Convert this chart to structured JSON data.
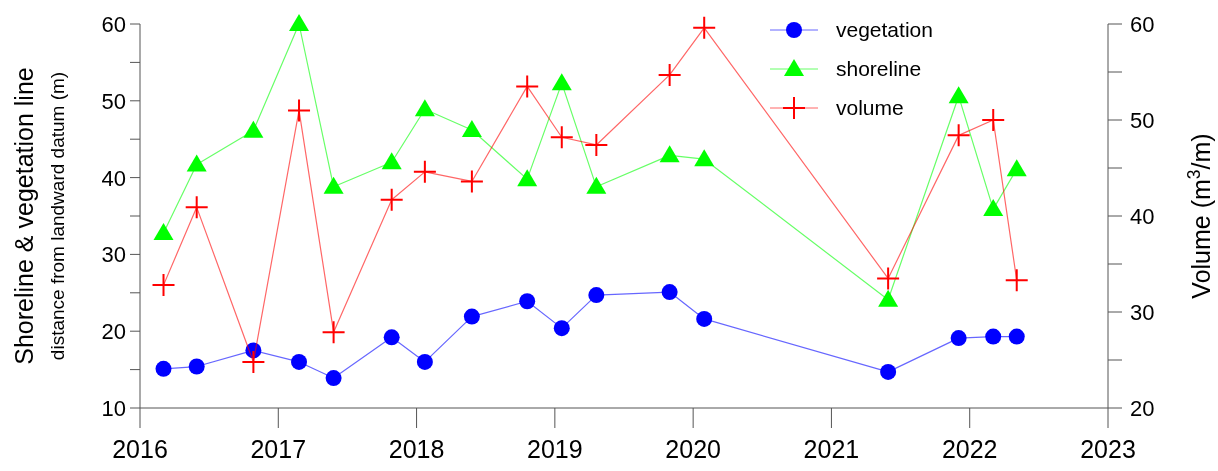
{
  "chart_data": {
    "type": "line",
    "ylabel": "Shoreline & vegetation line\ndistance from landward datum (m)",
    "y2label": "Volume (m$^{3}$/m)",
    "xlim": [
      2016,
      2023
    ],
    "xticks": [
      2016,
      2017,
      2018,
      2019,
      2020,
      2021,
      2022,
      2023
    ],
    "ylim": [
      10,
      60
    ],
    "yticks": [
      10,
      {
        "value": 15,
        "label": null
      },
      20,
      {
        "value": 25,
        "label": null
      },
      30,
      {
        "value": 35,
        "label": null
      },
      40,
      {
        "value": 45,
        "label": null
      },
      50,
      {
        "value": 55,
        "label": null
      },
      60
    ],
    "y2lim": [
      20,
      60
    ],
    "y2ticks": [
      20,
      {
        "value": 25,
        "label": null
      },
      30,
      {
        "value": 35,
        "label": null
      },
      40,
      {
        "value": 45,
        "label": null
      },
      50,
      {
        "value": 55,
        "label": null
      },
      60
    ],
    "x": [
      2016.17,
      2016.41,
      2016.82,
      2017.15,
      2017.4,
      2017.82,
      2018.06,
      2018.4,
      2018.8,
      2019.05,
      2019.3,
      2019.83,
      2020.08,
      2021.41,
      2021.92,
      2022.17,
      2022.34
    ],
    "legend": "top right",
    "grid": false,
    "line_style": "solid",
    "series": [
      {
        "name": "vegetation",
        "color": "#0000ff",
        "marker": "circle",
        "values": [
          15.1,
          15.4,
          17.5,
          16.0,
          13.9,
          19.2,
          16.0,
          21.9,
          23.9,
          20.4,
          24.7,
          25.1,
          21.6,
          14.7,
          19.1,
          19.3,
          19.3
        ]
      },
      {
        "name": "shoreline",
        "color": "#00ff00",
        "marker": "triangle",
        "values": [
          32.8,
          41.7,
          46.1,
          60,
          38.8,
          42.0,
          48.9,
          46.2,
          39.8,
          52.3,
          38.8,
          42.9,
          42.4,
          24.1,
          50.6,
          35.9,
          41.1
        ]
      },
      {
        "name": "volume",
        "color": "#ff0000",
        "marker": "cross",
        "axis": "y2",
        "values": [
          32.8,
          40.9,
          24.8,
          51.0,
          27.9,
          41.7,
          44.6,
          43.6,
          53.5,
          48.2,
          47.4,
          54.7,
          59.6,
          33.5,
          48.4,
          50.0,
          33.3
        ]
      }
    ]
  }
}
